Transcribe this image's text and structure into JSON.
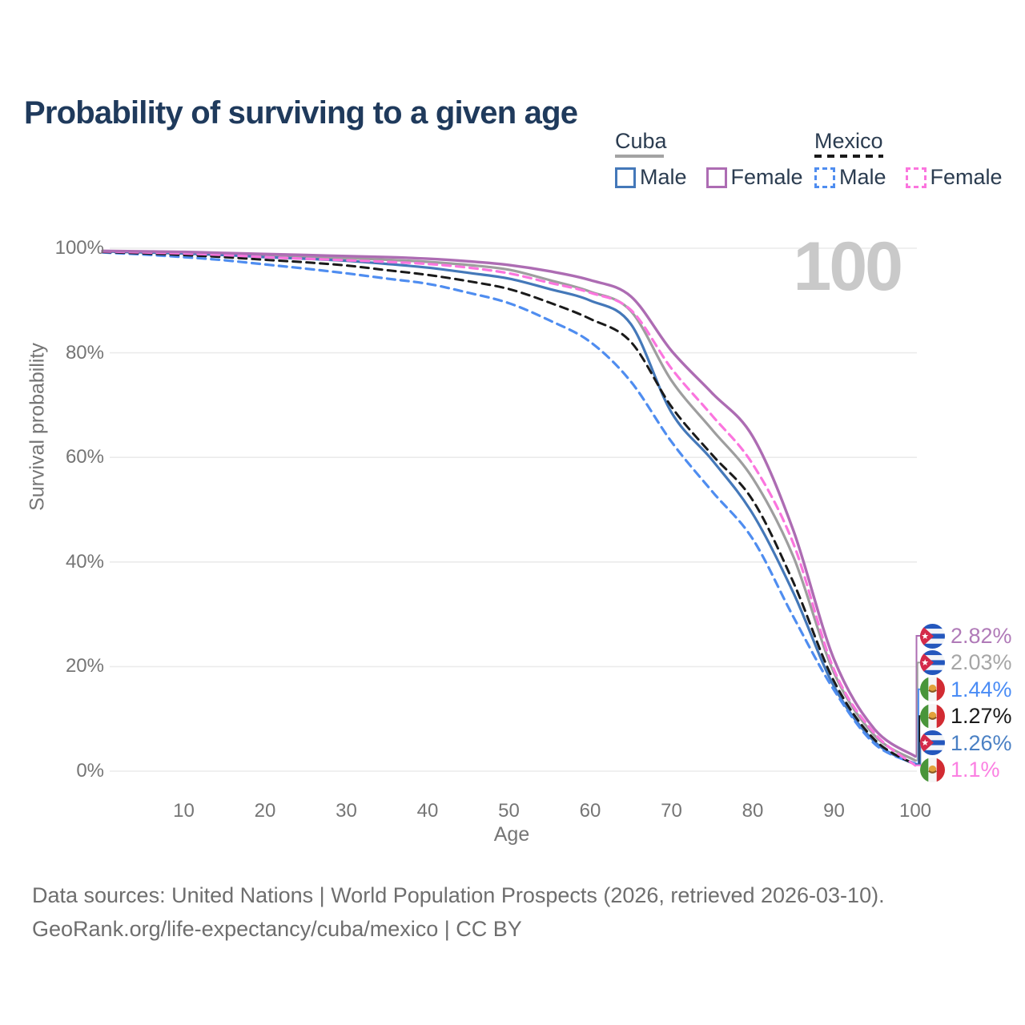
{
  "title": "Probability of surviving to a given age",
  "watermark": "100",
  "legend": {
    "cuba": {
      "header": "Cuba",
      "male": "Male",
      "female": "Female"
    },
    "mexico": {
      "header": "Mexico",
      "male": "Male",
      "female": "Female"
    }
  },
  "axes": {
    "y_label": "Survival probability",
    "x_label": "Age"
  },
  "footer": {
    "line1": "Data sources: United Nations | World Population Prospects (2026, retrieved 2026-03-10).",
    "line2": "GeoRank.org/life-expectancy/cuba/mexico | CC BY"
  },
  "colors": {
    "title_text": "#1f3a5c",
    "legend_text": "#2b3c50",
    "axis_text": "#757575",
    "grid": "#ebebeb",
    "watermark": "#c9c9c9",
    "footer_text": "#6e6e6e",
    "cuba_line_style": "#a3a3a3",
    "mexico_line_style": "#1a1a1a",
    "cuba_male": "#4478b9",
    "cuba_female": "#ad6cb3",
    "cuba_both": "#9e9e9e",
    "mexico_male": "#4f8df0",
    "mexico_female": "#fb75de",
    "mexico_both": "#1a1a1a"
  },
  "chart_data": {
    "type": "line",
    "title": "Probability of surviving to a given age",
    "xlabel": "Age",
    "ylabel": "Survival probability",
    "xlim": [
      0,
      100
    ],
    "ylim": [
      0,
      100
    ],
    "grid": "horizontal",
    "x_ticks": [
      {
        "value": 10,
        "label": "10"
      },
      {
        "value": 20,
        "label": "20"
      },
      {
        "value": 30,
        "label": "30"
      },
      {
        "value": 40,
        "label": "40"
      },
      {
        "value": 50,
        "label": "50"
      },
      {
        "value": 60,
        "label": "60"
      },
      {
        "value": 70,
        "label": "70"
      },
      {
        "value": 80,
        "label": "80"
      },
      {
        "value": 90,
        "label": "90"
      },
      {
        "value": 100,
        "label": "100"
      }
    ],
    "y_ticks": [
      {
        "value": 0,
        "label": "0%"
      },
      {
        "value": 20,
        "label": "20%"
      },
      {
        "value": 40,
        "label": "40%"
      },
      {
        "value": 60,
        "label": "60%"
      },
      {
        "value": 80,
        "label": "80%"
      },
      {
        "value": 100,
        "label": "100%"
      }
    ],
    "x": [
      0,
      5,
      10,
      15,
      20,
      25,
      30,
      35,
      40,
      45,
      50,
      55,
      60,
      65,
      70,
      75,
      80,
      85,
      90,
      95,
      100
    ],
    "series": [
      {
        "name": "Cuba Both sexes",
        "country": "cuba",
        "style": "solid",
        "color": "#9e9e9e",
        "width": 3.2,
        "values": [
          99.4,
          99.3,
          99.2,
          99.0,
          98.6,
          98.4,
          98.1,
          97.8,
          97.4,
          96.8,
          95.9,
          93.9,
          91.7,
          88.0,
          74.7,
          65.3,
          56.0,
          41.0,
          18.8,
          6.8,
          2.03
        ],
        "end_label": "2.03%"
      },
      {
        "name": "Cuba Male",
        "country": "cuba",
        "style": "solid",
        "color": "#4478b9",
        "width": 3.2,
        "values": [
          99.4,
          99.2,
          99.0,
          98.7,
          98.3,
          98.0,
          97.6,
          97.0,
          96.3,
          95.3,
          94.2,
          92.2,
          90.0,
          85.5,
          68.6,
          59.5,
          49.2,
          34.1,
          16.2,
          5.6,
          1.26
        ],
        "end_label": "1.26%"
      },
      {
        "name": "Mexico Male",
        "country": "mexico",
        "style": "dashed",
        "color": "#4f8df0",
        "width": 3.2,
        "values": [
          99.2,
          98.8,
          98.3,
          97.7,
          96.9,
          96.1,
          95.2,
          94.2,
          93.2,
          91.5,
          89.5,
          86.2,
          82.1,
          74.5,
          63.0,
          53.5,
          44.4,
          29.5,
          15.5,
          5.2,
          1.44
        ],
        "end_label": "1.44%"
      },
      {
        "name": "Mexico Both sexes",
        "country": "mexico",
        "style": "dashed",
        "color": "#1a1a1a",
        "width": 3.0,
        "values": [
          99.3,
          99.0,
          98.7,
          98.3,
          97.8,
          97.3,
          96.7,
          95.8,
          94.9,
          93.7,
          92.2,
          89.6,
          86.5,
          82.1,
          69.7,
          60.5,
          51.8,
          36.1,
          17.2,
          6.0,
          1.27
        ],
        "end_label": "1.27%"
      },
      {
        "name": "Mexico Female",
        "country": "mexico",
        "style": "dashed",
        "color": "#fb75de",
        "width": 3.2,
        "values": [
          99.4,
          99.2,
          99.0,
          98.7,
          98.3,
          98.0,
          97.7,
          97.4,
          97.0,
          96.3,
          95.2,
          93.4,
          91.5,
          88.2,
          77.0,
          68.0,
          58.7,
          43.5,
          19.4,
          7.2,
          1.1
        ],
        "end_label": "1.1%"
      },
      {
        "name": "Cuba Female",
        "country": "cuba",
        "style": "solid",
        "color": "#ad6cb3",
        "width": 3.4,
        "values": [
          99.5,
          99.4,
          99.3,
          99.1,
          98.9,
          98.7,
          98.5,
          98.3,
          98.0,
          97.5,
          96.8,
          95.6,
          93.9,
          90.8,
          80.4,
          72.3,
          64.0,
          46.0,
          21.4,
          8.0,
          2.82
        ],
        "end_label": "2.82%"
      }
    ],
    "end_labels": [
      {
        "text": "2.82%",
        "series": "Cuba Female",
        "flag": "cuba",
        "color": "#b07ab8"
      },
      {
        "text": "2.03%",
        "series": "Cuba Both sexes",
        "flag": "cuba",
        "color": "#a6a6a6"
      },
      {
        "text": "1.44%",
        "series": "Mexico Male",
        "flag": "mexico",
        "color": "#4a8cf5"
      },
      {
        "text": "1.27%",
        "series": "Mexico Both sexes",
        "flag": "mexico",
        "color": "#1a1a1a"
      },
      {
        "text": "1.26%",
        "series": "Cuba Male",
        "flag": "cuba",
        "color": "#4a80c4"
      },
      {
        "text": "1.1%",
        "series": "Mexico Female",
        "flag": "mexico",
        "color": "#fb80e2"
      }
    ]
  }
}
